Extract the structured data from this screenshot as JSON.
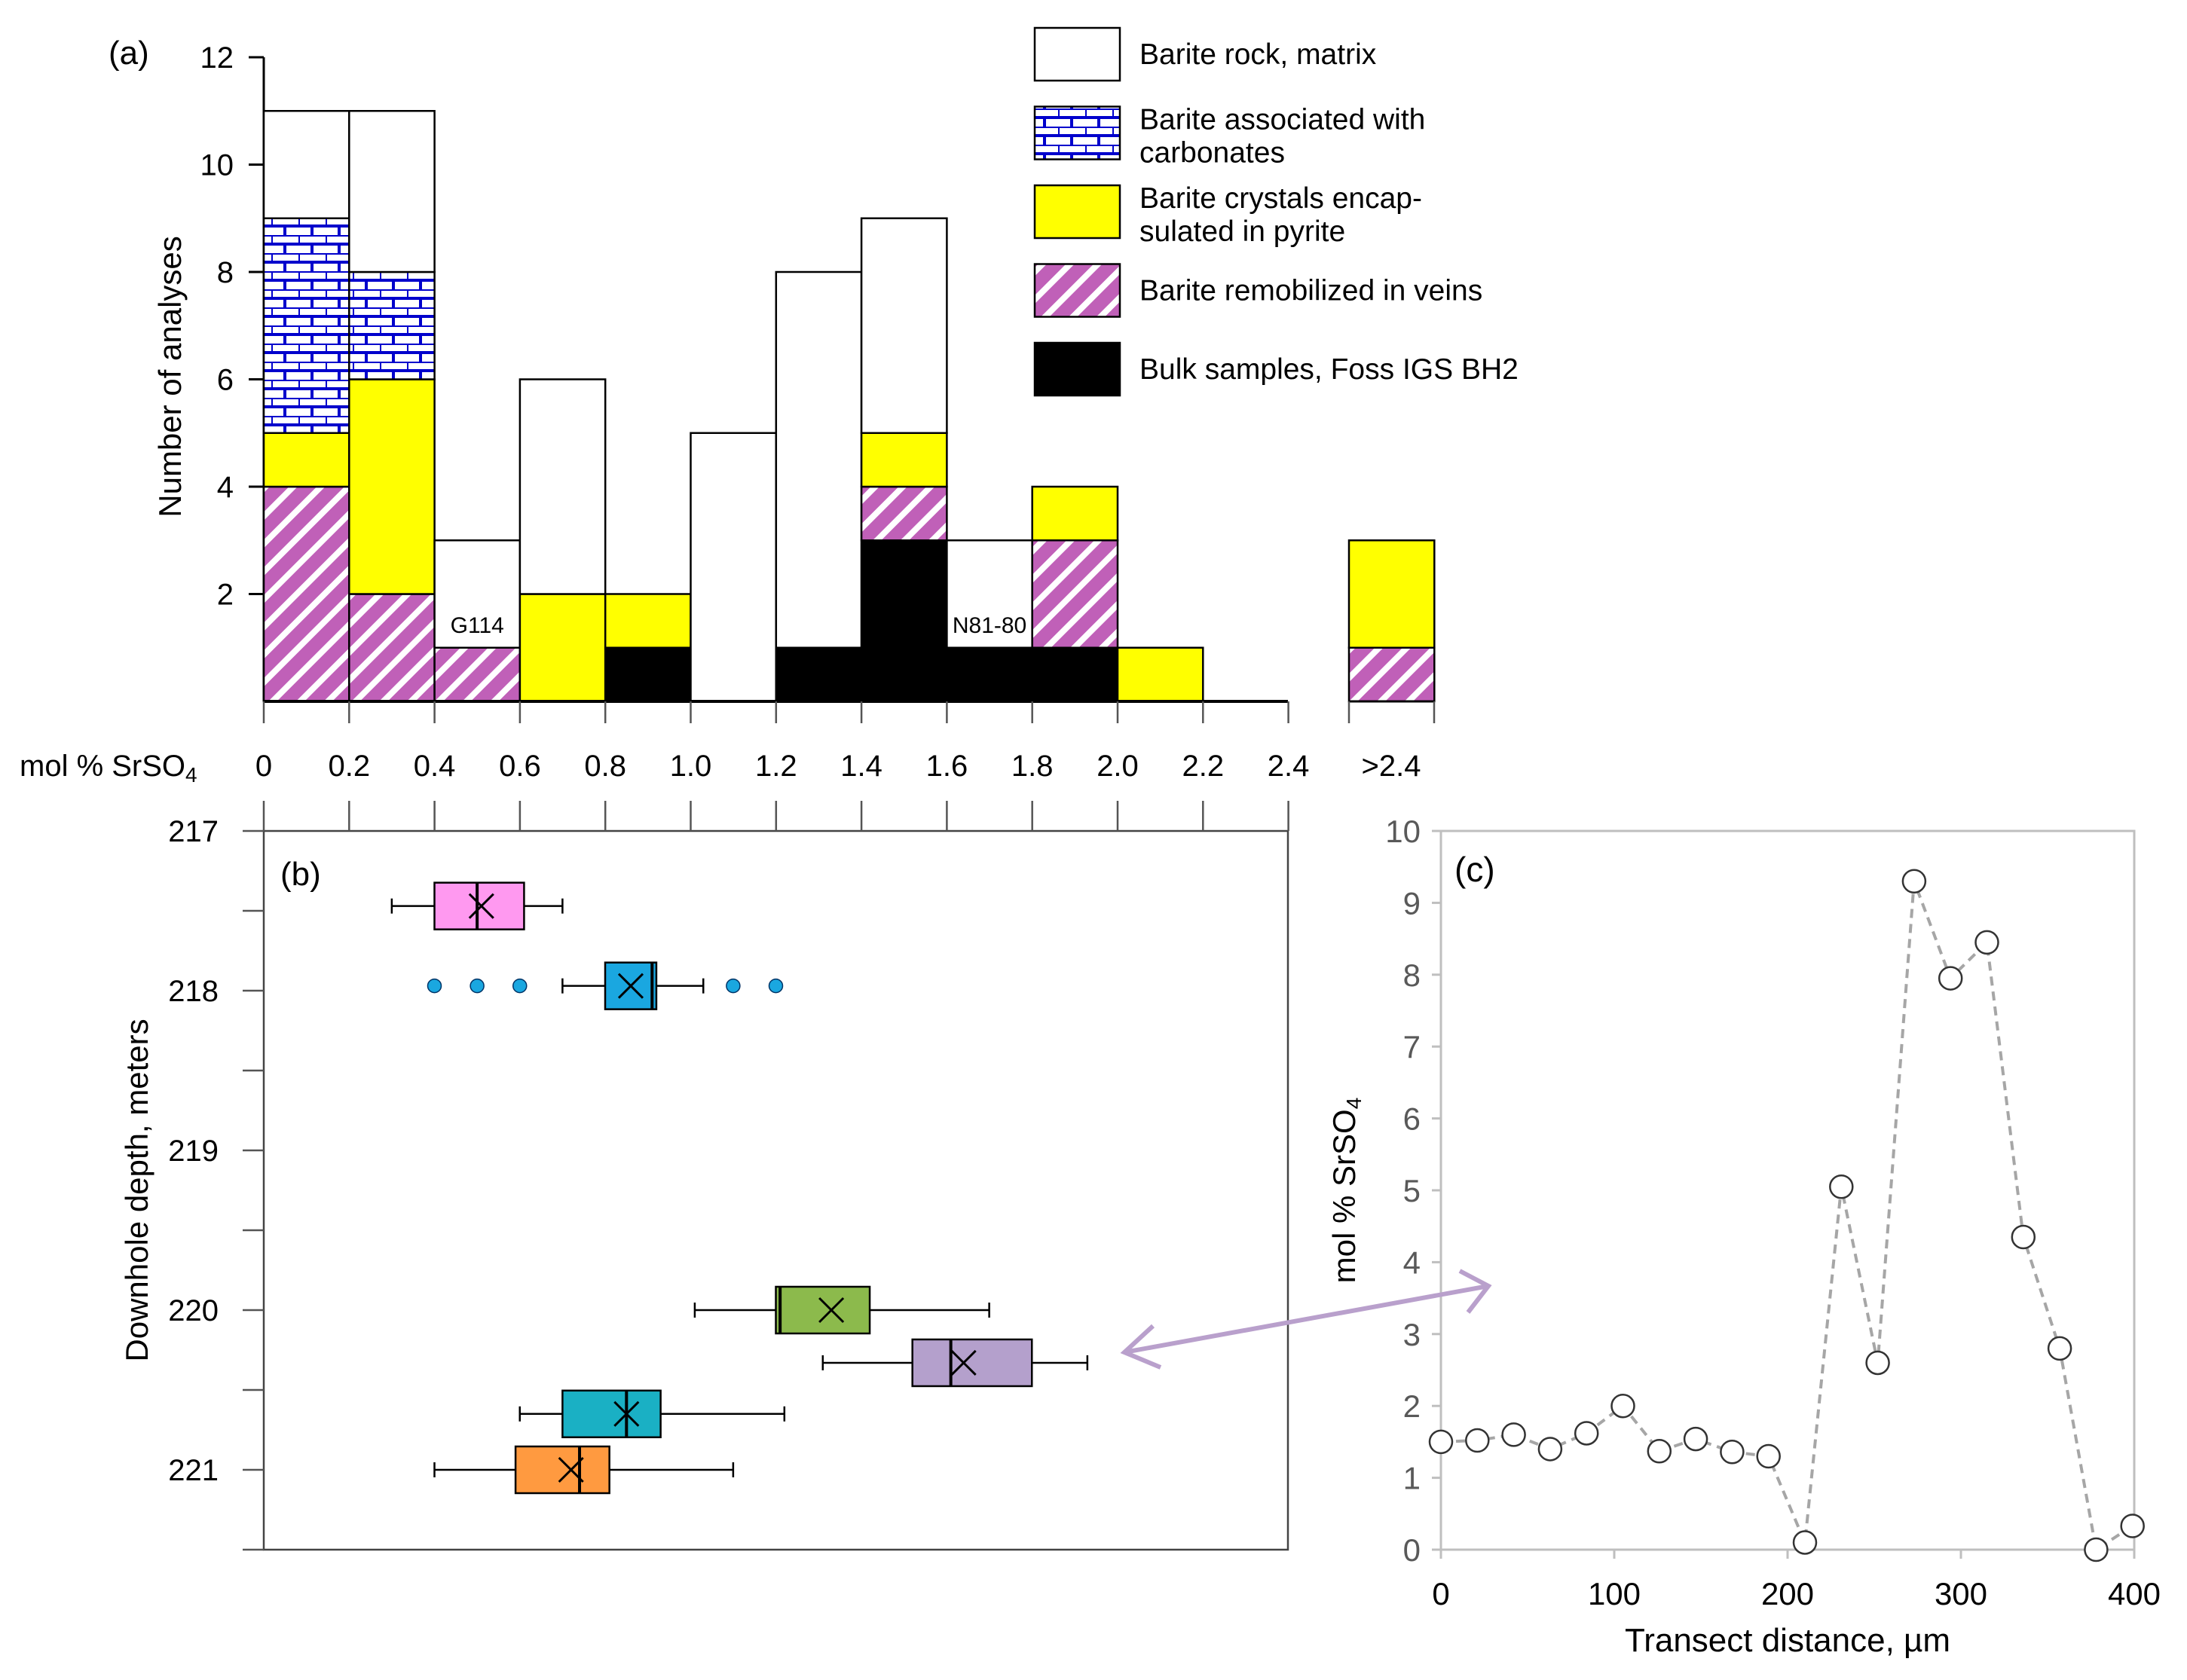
{
  "colors": {
    "matrix": "#ffffff",
    "carbonate": "#0000cc",
    "encapsulated": "#ffff00",
    "veins": "#c060b8",
    "bulk": "#000000",
    "arrow": "#b9a0cc",
    "pink": "#ff99f0",
    "blue": "#1aa7e0",
    "green": "#8cba4c",
    "purple": "#b4a0cc",
    "teal": "#1ab0c4",
    "orange": "#ff9a40",
    "outlier": "#1aa7e0"
  },
  "chart_data": [
    {
      "panel": "(a)",
      "type": "bar",
      "stacked": true,
      "xlabel": "mol % SrSO4",
      "ylabel": "Number of analyses",
      "ylim": [
        0,
        12
      ],
      "yticks": [
        "2",
        "4",
        "6",
        "8",
        "10",
        "12"
      ],
      "xticks": [
        "0",
        "0.2",
        "0.4",
        "0.6",
        "0.8",
        "1.0",
        "1.2",
        "1.4",
        "1.6",
        "1.8",
        "2.0",
        "2.2",
        "2.4",
        ">2.4"
      ],
      "categories": [
        "0-0.2",
        "0.2-0.4",
        "0.4-0.6",
        "0.6-0.8",
        "0.8-1.0",
        "1.0-1.2",
        "1.2-1.4",
        "1.4-1.6",
        "1.6-1.8",
        "1.8-2.0",
        "2.0-2.2",
        "2.2-2.4",
        ">2.4"
      ],
      "series": [
        {
          "name": "Bulk samples, Foss IGS BH2",
          "key": "bulk",
          "values": [
            0,
            0,
            0,
            0,
            1,
            0,
            1,
            3,
            1,
            1,
            0,
            0,
            0
          ]
        },
        {
          "name": "Barite remobilized in veins",
          "key": "veins",
          "values": [
            4,
            2,
            1,
            0,
            0,
            0,
            0,
            1,
            0,
            2,
            0,
            0,
            1
          ]
        },
        {
          "name": "Barite crystals encap-\nsulated in pyrite",
          "key": "encapsulated",
          "values": [
            1,
            4,
            0,
            2,
            1,
            0,
            0,
            1,
            0,
            1,
            1,
            0,
            2
          ]
        },
        {
          "name": "Barite associated with\ncarbonates",
          "key": "carbonate",
          "values": [
            4,
            2,
            0,
            0,
            0,
            0,
            0,
            0,
            0,
            0,
            0,
            0,
            0
          ]
        },
        {
          "name": "Barite rock, matrix",
          "key": "matrix",
          "values": [
            2,
            3,
            2,
            4,
            0,
            5,
            7,
            4,
            2,
            0,
            0,
            0,
            0
          ]
        }
      ],
      "legend": [
        {
          "key": "matrix",
          "lines": [
            "Barite rock, matrix"
          ]
        },
        {
          "key": "carbonate",
          "lines": [
            "Barite associated with",
            "carbonates"
          ]
        },
        {
          "key": "encapsulated",
          "lines": [
            "Barite crystals encap-",
            "sulated in pyrite"
          ]
        },
        {
          "key": "veins",
          "lines": [
            "Barite remobilized in veins"
          ]
        },
        {
          "key": "bulk",
          "lines": [
            "Bulk samples, Foss IGS BH2"
          ]
        }
      ],
      "legend_position": "top-right",
      "annotations": [
        {
          "text": "G114",
          "bin": 2
        },
        {
          "text": "N81-80",
          "bin": 8
        }
      ]
    },
    {
      "panel": "(b)",
      "type": "box",
      "ylabel": "Downhole depth, meters",
      "ylim": [
        217,
        221.5
      ],
      "yticks": [
        "217",
        "218",
        "219",
        "220",
        "221"
      ],
      "xlim": [
        0,
        2.4
      ],
      "boxes": [
        {
          "depth": 217.47,
          "whisker_low": 0.3,
          "q1": 0.4,
          "median": 0.5,
          "q3": 0.61,
          "whisker_high": 0.7,
          "mean": 0.51,
          "color": "pink",
          "outliers": []
        },
        {
          "depth": 217.97,
          "whisker_low": 0.7,
          "q1": 0.8,
          "median": 0.91,
          "q3": 0.92,
          "whisker_high": 1.03,
          "mean": 0.86,
          "color": "blue",
          "outliers": [
            0.4,
            0.5,
            0.6,
            1.1,
            1.2
          ]
        },
        {
          "depth": 220.0,
          "whisker_low": 1.01,
          "q1": 1.2,
          "median": 1.21,
          "q3": 1.42,
          "whisker_high": 1.7,
          "mean": 1.33,
          "color": "green",
          "outliers": []
        },
        {
          "depth": 220.33,
          "whisker_low": 1.31,
          "q1": 1.52,
          "median": 1.61,
          "q3": 1.8,
          "whisker_high": 1.93,
          "mean": 1.64,
          "color": "purple",
          "outliers": []
        },
        {
          "depth": 220.65,
          "whisker_low": 0.6,
          "q1": 0.7,
          "median": 0.85,
          "q3": 0.93,
          "whisker_high": 1.22,
          "mean": 0.85,
          "color": "teal",
          "outliers": []
        },
        {
          "depth": 221.0,
          "whisker_low": 0.4,
          "q1": 0.59,
          "median": 0.74,
          "q3": 0.81,
          "whisker_high": 1.1,
          "mean": 0.72,
          "color": "orange",
          "outliers": []
        }
      ]
    },
    {
      "panel": "(c)",
      "type": "line",
      "xlabel": "Transect distance, µm",
      "ylabel": "mol % SrSO4",
      "xlim": [
        0,
        400
      ],
      "ylim": [
        0,
        10
      ],
      "xticks": [
        "0",
        "100",
        "200",
        "300",
        "400"
      ],
      "yticks": [
        "0",
        "1",
        "2",
        "3",
        "4",
        "5",
        "6",
        "7",
        "8",
        "9",
        "10"
      ],
      "x": [
        0,
        21,
        42,
        63,
        84,
        105,
        126,
        147,
        168,
        189,
        210,
        231,
        252,
        273,
        294,
        315,
        336,
        357,
        378,
        399
      ],
      "y": [
        1.5,
        1.52,
        1.6,
        1.4,
        1.62,
        2.0,
        1.37,
        1.54,
        1.36,
        1.3,
        0.1,
        5.05,
        2.6,
        9.3,
        7.95,
        8.45,
        4.35,
        2.8,
        0.0,
        0.33
      ],
      "style": "dashed line, open circle markers"
    }
  ]
}
